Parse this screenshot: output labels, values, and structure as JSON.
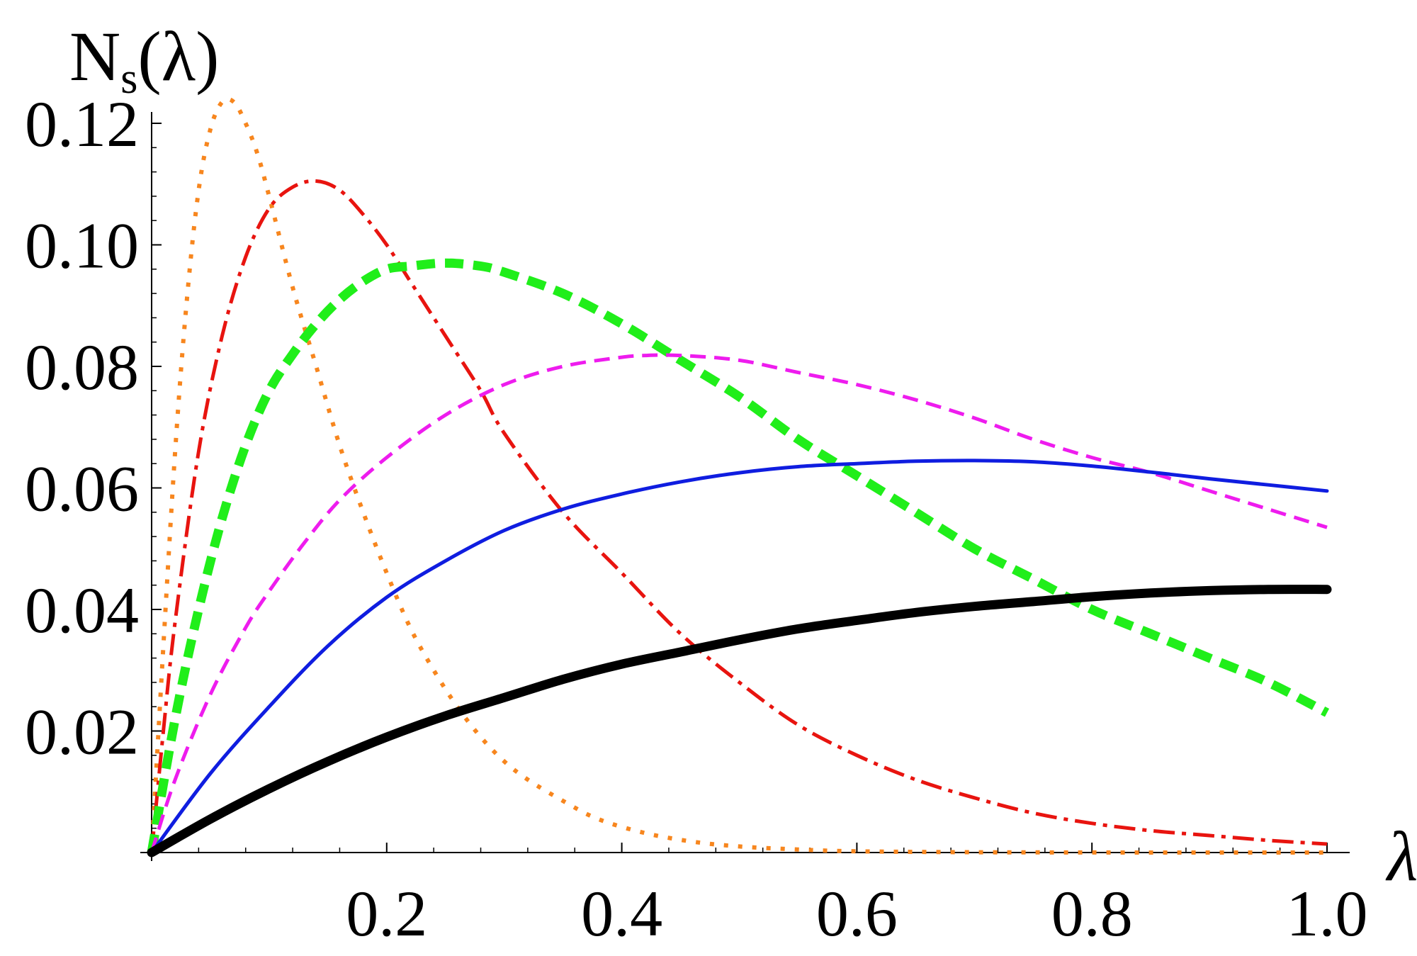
{
  "chart_data": {
    "type": "line",
    "title": "",
    "xlabel": "λ",
    "ylabel": "N",
    "ylabel_subscript": "s",
    "ylabel_suffix": "(λ)",
    "xlim": [
      0,
      1.0
    ],
    "ylim": [
      0,
      0.12
    ],
    "x_ticks": [
      0.2,
      0.4,
      0.6,
      0.8,
      1.0
    ],
    "x_tick_labels": [
      "0.2",
      "0.4",
      "0.6",
      "0.8",
      "1.0"
    ],
    "y_ticks": [
      0.02,
      0.04,
      0.06,
      0.08,
      0.1,
      0.12
    ],
    "y_tick_labels": [
      "0.02",
      "0.04",
      "0.06",
      "0.08",
      "0.10",
      "0.12"
    ],
    "grid": false,
    "legend": "none",
    "series": [
      {
        "color": "#f7861e",
        "style": "dotted",
        "x": [
          0,
          0.01,
          0.02,
          0.03,
          0.04,
          0.05,
          0.06,
          0.07,
          0.08,
          0.09,
          0.1,
          0.12,
          0.14,
          0.16,
          0.18,
          0.2,
          0.22,
          0.24,
          0.26,
          0.28,
          0.3,
          0.32,
          0.35,
          0.38,
          0.42,
          0.46,
          0.5,
          0.55,
          0.6,
          0.7,
          0.8,
          0.9,
          1.0
        ],
        "y": [
          0,
          0.034,
          0.066,
          0.091,
          0.109,
          0.119,
          0.1235,
          0.1235,
          0.12,
          0.115,
          0.108,
          0.093,
          0.08,
          0.067,
          0.056,
          0.046,
          0.037,
          0.03,
          0.024,
          0.019,
          0.015,
          0.012,
          0.0085,
          0.0055,
          0.0032,
          0.0018,
          0.001,
          0.0005,
          0.0002,
          5e-05,
          1e-05,
          0.0,
          0.0
        ]
      },
      {
        "color": "#e8140f",
        "style": "dash-dot",
        "x": [
          0,
          0.01,
          0.02,
          0.04,
          0.06,
          0.08,
          0.1,
          0.12,
          0.14,
          0.16,
          0.18,
          0.2,
          0.22,
          0.25,
          0.28,
          0.3,
          0.35,
          0.4,
          0.45,
          0.5,
          0.55,
          0.6,
          0.65,
          0.7,
          0.75,
          0.8,
          0.85,
          0.9,
          0.95,
          1.0
        ],
        "y": [
          0,
          0.02,
          0.038,
          0.066,
          0.085,
          0.098,
          0.106,
          0.1095,
          0.1105,
          0.109,
          0.105,
          0.1,
          0.094,
          0.085,
          0.076,
          0.069,
          0.056,
          0.046,
          0.036,
          0.028,
          0.021,
          0.016,
          0.012,
          0.009,
          0.0065,
          0.0048,
          0.0036,
          0.0028,
          0.002,
          0.0014
        ]
      },
      {
        "color": "#20ee1a",
        "style": "thick-dashed",
        "x": [
          0,
          0.02,
          0.04,
          0.06,
          0.08,
          0.1,
          0.12,
          0.14,
          0.16,
          0.18,
          0.2,
          0.22,
          0.25,
          0.28,
          0.3,
          0.35,
          0.4,
          0.45,
          0.5,
          0.55,
          0.6,
          0.65,
          0.7,
          0.75,
          0.8,
          0.85,
          0.9,
          0.95,
          1.0
        ],
        "y": [
          0,
          0.022,
          0.04,
          0.055,
          0.067,
          0.076,
          0.082,
          0.087,
          0.091,
          0.094,
          0.096,
          0.0965,
          0.097,
          0.0965,
          0.0955,
          0.092,
          0.087,
          0.081,
          0.075,
          0.068,
          0.062,
          0.056,
          0.05,
          0.045,
          0.04,
          0.036,
          0.032,
          0.028,
          0.023
        ]
      },
      {
        "color": "#ee1cee",
        "style": "dashed",
        "x": [
          0,
          0.02,
          0.05,
          0.08,
          0.1,
          0.13,
          0.16,
          0.2,
          0.25,
          0.3,
          0.35,
          0.4,
          0.42,
          0.45,
          0.5,
          0.55,
          0.6,
          0.65,
          0.7,
          0.75,
          0.8,
          0.85,
          0.9,
          0.95,
          1.0
        ],
        "y": [
          0,
          0.012,
          0.026,
          0.037,
          0.043,
          0.051,
          0.058,
          0.065,
          0.072,
          0.077,
          0.08,
          0.0815,
          0.0818,
          0.0818,
          0.081,
          0.079,
          0.077,
          0.0745,
          0.0715,
          0.068,
          0.065,
          0.0625,
          0.0595,
          0.0565,
          0.0535
        ]
      },
      {
        "color": "#0f1de0",
        "style": "solid",
        "x": [
          0,
          0.05,
          0.1,
          0.15,
          0.2,
          0.25,
          0.3,
          0.35,
          0.4,
          0.45,
          0.5,
          0.55,
          0.6,
          0.65,
          0.7,
          0.75,
          0.8,
          0.85,
          0.9,
          0.95,
          1.0
        ],
        "y": [
          0,
          0.013,
          0.024,
          0.034,
          0.042,
          0.048,
          0.053,
          0.0565,
          0.059,
          0.061,
          0.0625,
          0.0635,
          0.064,
          0.0644,
          0.0645,
          0.0643,
          0.0636,
          0.0626,
          0.0615,
          0.0605,
          0.0595
        ]
      },
      {
        "color": "#000000",
        "style": "thick-solid",
        "x": [
          0,
          0.05,
          0.1,
          0.15,
          0.2,
          0.25,
          0.3,
          0.35,
          0.4,
          0.45,
          0.5,
          0.55,
          0.6,
          0.65,
          0.7,
          0.75,
          0.8,
          0.85,
          0.9,
          0.95,
          1.0
        ],
        "y": [
          0,
          0.0055,
          0.0105,
          0.015,
          0.019,
          0.0225,
          0.0255,
          0.0285,
          0.031,
          0.033,
          0.035,
          0.0368,
          0.0382,
          0.0395,
          0.0405,
          0.0413,
          0.0421,
          0.0427,
          0.0431,
          0.0433,
          0.0433
        ]
      }
    ]
  }
}
